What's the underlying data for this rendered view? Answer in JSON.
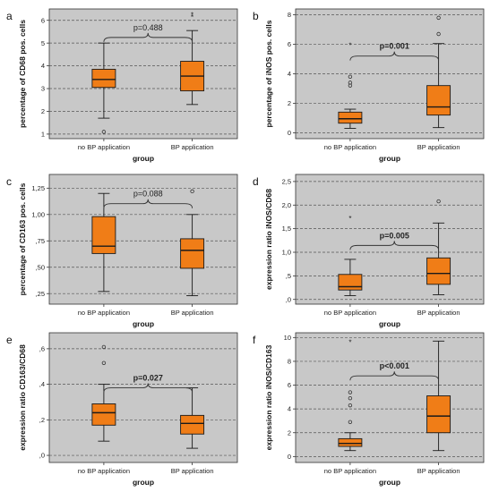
{
  "colors": {
    "plot_bg": "#c8c8c8",
    "box_fill": "#f07d17",
    "box_stroke": "#1a1a1a",
    "grid": "#555555"
  },
  "chart_data": [
    {
      "panel": "a",
      "type": "boxplot",
      "xlabel": "group",
      "ylabel": "percentage of CD68 pos. cells",
      "categories": [
        "no BP application",
        "BP application"
      ],
      "yticks": [
        "1",
        "2",
        "3",
        "4",
        "5",
        "6"
      ],
      "ytick_values": [
        1,
        2,
        3,
        4,
        5,
        6
      ],
      "ylim": [
        0.8,
        6.5
      ],
      "grid": true,
      "boxes": [
        {
          "whisker_low": 1.7,
          "q1": 3.05,
          "median": 3.4,
          "q3": 3.85,
          "whisker_high": 5.0,
          "outliers": [
            1.1
          ],
          "extremes": []
        },
        {
          "whisker_low": 2.3,
          "q1": 2.9,
          "median": 3.55,
          "q3": 4.2,
          "whisker_high": 5.55,
          "outliers": [],
          "extremes": [
            6.15,
            6.25
          ]
        }
      ],
      "pvalue": "p=0.488",
      "pvalue_bold": false,
      "brace_value": 5.05
    },
    {
      "panel": "b",
      "type": "boxplot",
      "xlabel": "group",
      "ylabel": "percentage of iNOS pos. cells",
      "categories": [
        "no BP application",
        "BP application"
      ],
      "yticks": [
        "0",
        "2",
        "4",
        "6",
        "8"
      ],
      "ytick_values": [
        0,
        2,
        4,
        6,
        8
      ],
      "ylim": [
        -0.4,
        8.4
      ],
      "grid": true,
      "boxes": [
        {
          "whisker_low": 0.3,
          "q1": 0.65,
          "median": 0.95,
          "q3": 1.4,
          "whisker_high": 1.6,
          "outliers": [
            3.2,
            3.4,
            3.8
          ],
          "extremes": [
            5.95
          ]
        },
        {
          "whisker_low": 0.35,
          "q1": 1.2,
          "median": 1.75,
          "q3": 3.2,
          "whisker_high": 6.05,
          "outliers": [
            6.7,
            7.8
          ],
          "extremes": []
        }
      ],
      "pvalue": "p=0.001",
      "pvalue_bold": true,
      "brace_value": 4.9
    },
    {
      "panel": "c",
      "type": "boxplot",
      "xlabel": "group",
      "ylabel": "percentage of CD163 pos. cells",
      "categories": [
        "no BP application",
        "BP application"
      ],
      "yticks": [
        ",25",
        ",50",
        ",75",
        "1,00",
        "1,25"
      ],
      "ytick_values": [
        0.25,
        0.5,
        0.75,
        1.0,
        1.25
      ],
      "ylim": [
        0.15,
        1.38
      ],
      "grid": true,
      "boxes": [
        {
          "whisker_low": 0.27,
          "q1": 0.63,
          "median": 0.7,
          "q3": 0.98,
          "whisker_high": 1.2,
          "outliers": [],
          "extremes": []
        },
        {
          "whisker_low": 0.23,
          "q1": 0.49,
          "median": 0.66,
          "q3": 0.77,
          "whisker_high": 1.0,
          "outliers": [
            1.22
          ],
          "extremes": []
        }
      ],
      "pvalue": "p=0.088",
      "pvalue_bold": false,
      "brace_value": 1.06
    },
    {
      "panel": "d",
      "type": "boxplot",
      "xlabel": "group",
      "ylabel": "expression ratio iNOS/CD68",
      "categories": [
        "no BP application",
        "BP application"
      ],
      "yticks": [
        ",0",
        ",5",
        "1,0",
        "1,5",
        "2,0",
        "2,5"
      ],
      "ytick_values": [
        0,
        0.5,
        1.0,
        1.5,
        2.0,
        2.5
      ],
      "ylim": [
        -0.1,
        2.65
      ],
      "grid": true,
      "boxes": [
        {
          "whisker_low": 0.08,
          "q1": 0.2,
          "median": 0.27,
          "q3": 0.53,
          "whisker_high": 0.85,
          "outliers": [],
          "extremes": [
            1.72
          ]
        },
        {
          "whisker_low": 0.1,
          "q1": 0.32,
          "median": 0.55,
          "q3": 0.88,
          "whisker_high": 1.62,
          "outliers": [
            2.08
          ],
          "extremes": []
        }
      ],
      "pvalue": "p=0.005",
      "pvalue_bold": true,
      "brace_value": 1.05
    },
    {
      "panel": "e",
      "type": "boxplot",
      "xlabel": "group",
      "ylabel": "expression ratio CD163/CD68",
      "categories": [
        "no BP application",
        "BP application"
      ],
      "yticks": [
        ",0",
        ",2",
        ",4",
        ",6"
      ],
      "ytick_values": [
        0,
        0.2,
        0.4,
        0.6
      ],
      "ylim": [
        -0.04,
        0.69
      ],
      "grid": true,
      "boxes": [
        {
          "whisker_low": 0.08,
          "q1": 0.17,
          "median": 0.24,
          "q3": 0.29,
          "whisker_high": 0.4,
          "outliers": [
            0.52,
            0.61
          ],
          "extremes": []
        },
        {
          "whisker_low": 0.04,
          "q1": 0.12,
          "median": 0.18,
          "q3": 0.225,
          "whisker_high": 0.38,
          "outliers": [],
          "extremes": []
        }
      ],
      "pvalue": "p=0.027",
      "pvalue_bold": true,
      "brace_value": 0.355
    },
    {
      "panel": "f",
      "type": "boxplot",
      "xlabel": "group",
      "ylabel": "expression ratio iNOS/CD163",
      "categories": [
        "no BP application",
        "BP application"
      ],
      "yticks": [
        "0",
        "2",
        "4",
        "6",
        "8",
        "10"
      ],
      "ytick_values": [
        0,
        2,
        4,
        6,
        8,
        10
      ],
      "ylim": [
        -0.5,
        10.4
      ],
      "grid": true,
      "boxes": [
        {
          "whisker_low": 0.5,
          "q1": 0.85,
          "median": 1.1,
          "q3": 1.5,
          "whisker_high": 2.0,
          "outliers": [
            2.9,
            4.3,
            4.9,
            5.4
          ],
          "extremes": [
            9.6
          ]
        },
        {
          "whisker_low": 0.5,
          "q1": 2.0,
          "median": 3.4,
          "q3": 5.1,
          "whisker_high": 9.7,
          "outliers": [],
          "extremes": []
        }
      ],
      "pvalue": "p<0.001",
      "pvalue_bold": true,
      "brace_value": 6.4
    }
  ]
}
